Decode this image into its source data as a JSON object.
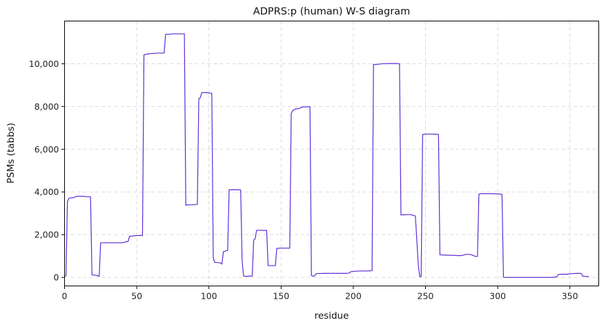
{
  "chart_data": {
    "type": "line",
    "title": "ADPRS:p (human) W-S diagram",
    "xlabel": "residue",
    "ylabel": "PSMs (tabbs)",
    "xlim": [
      0,
      370
    ],
    "ylim": [
      -400,
      12000
    ],
    "xticks": [
      0,
      50,
      100,
      150,
      200,
      250,
      300,
      350
    ],
    "yticks": [
      0,
      2000,
      4000,
      6000,
      8000,
      10000
    ],
    "ytick_labels": [
      "0",
      "2,000",
      "4,000",
      "6,000",
      "8,000",
      "10,000"
    ],
    "grid": true,
    "series": [
      {
        "color": "#5b2bd6",
        "x": [
          0,
          1,
          2,
          3,
          4,
          6,
          7,
          8,
          10,
          12,
          14,
          15,
          16,
          18,
          19,
          20,
          22,
          24,
          25,
          30,
          35,
          40,
          42,
          43,
          44,
          45,
          50,
          53,
          54,
          55,
          57,
          60,
          65,
          68,
          69,
          70,
          72,
          75,
          80,
          83,
          84,
          85,
          88,
          90,
          92,
          93,
          94,
          95,
          98,
          100,
          101,
          102,
          103,
          104,
          105,
          108,
          109,
          110,
          112,
          113,
          114,
          118,
          120,
          122,
          123,
          124,
          126,
          128,
          130,
          131,
          132,
          133,
          134,
          135,
          136,
          137,
          138,
          140,
          141,
          142,
          145,
          146,
          147,
          150,
          155,
          156,
          157,
          158,
          160,
          162,
          165,
          168,
          169,
          170,
          171,
          172,
          173,
          174,
          175,
          180,
          185,
          190,
          195,
          197,
          198,
          200,
          205,
          210,
          212,
          213,
          214,
          215,
          220,
          225,
          230,
          232,
          233,
          234,
          235,
          238,
          240,
          242,
          243,
          245,
          246,
          247,
          248,
          249,
          250,
          255,
          258,
          259,
          260,
          262,
          265,
          270,
          272,
          273,
          275,
          278,
          279,
          280,
          282,
          284,
          285,
          286,
          287,
          288,
          290,
          295,
          300,
          302,
          303,
          304,
          305,
          310,
          315,
          320,
          325,
          330,
          335,
          338,
          340,
          341,
          342,
          345,
          348,
          350,
          352,
          355,
          357,
          358,
          359,
          360,
          362,
          363
        ],
        "y": [
          50,
          80,
          3550,
          3700,
          3720,
          3730,
          3750,
          3790,
          3800,
          3800,
          3790,
          3780,
          3780,
          3780,
          120,
          110,
          100,
          50,
          1620,
          1620,
          1620,
          1620,
          1660,
          1670,
          1680,
          1920,
          1960,
          1960,
          1960,
          10420,
          10450,
          10480,
          10500,
          10500,
          10500,
          11380,
          11380,
          11400,
          11400,
          11400,
          3380,
          3390,
          3400,
          3400,
          3420,
          8380,
          8400,
          8650,
          8650,
          8640,
          8620,
          8620,
          900,
          700,
          700,
          680,
          620,
          1200,
          1250,
          1270,
          4100,
          4110,
          4100,
          4090,
          790,
          60,
          50,
          60,
          60,
          1750,
          1800,
          2200,
          2210,
          2210,
          2210,
          2200,
          2200,
          2200,
          550,
          550,
          550,
          550,
          1360,
          1370,
          1370,
          1370,
          7680,
          7800,
          7890,
          7900,
          7980,
          7980,
          7990,
          7990,
          80,
          60,
          60,
          160,
          180,
          190,
          190,
          190,
          190,
          200,
          260,
          280,
          300,
          300,
          310,
          320,
          9980,
          9960,
          10000,
          10010,
          10010,
          10000,
          2920,
          2930,
          2930,
          2940,
          2940,
          2890,
          2880,
          600,
          40,
          40,
          6680,
          6700,
          6710,
          6710,
          6700,
          6690,
          1060,
          1050,
          1040,
          1030,
          1020,
          1020,
          1020,
          1080,
          1080,
          1080,
          1060,
          1000,
          980,
          990,
          3900,
          3920,
          3920,
          3920,
          3910,
          3900,
          3880,
          10,
          0,
          0,
          0,
          0,
          0,
          0,
          0,
          0,
          20,
          30,
          140,
          150,
          150,
          170,
          180,
          190,
          190,
          180,
          60,
          50,
          40,
          40
        ]
      }
    ]
  }
}
